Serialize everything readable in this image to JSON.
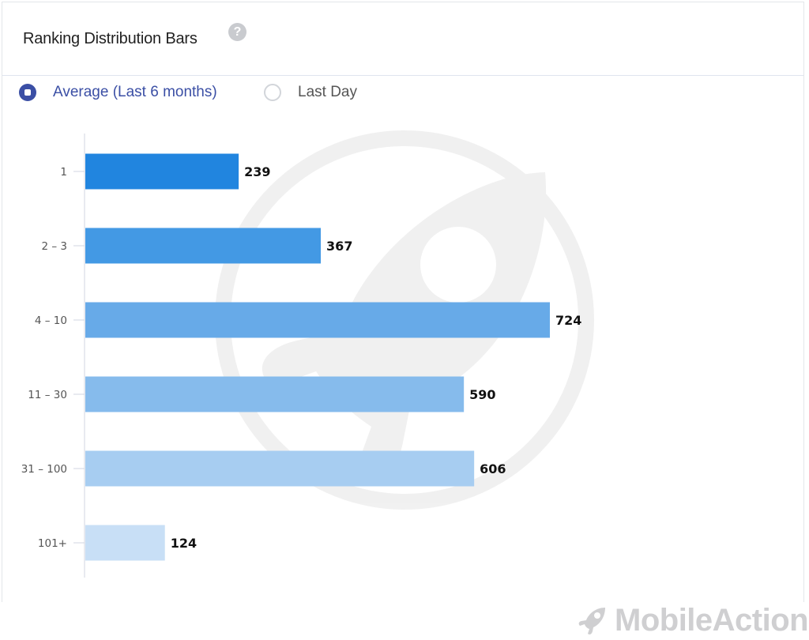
{
  "card": {
    "title": "Ranking Distribution Bars",
    "help_icon": "question-circle-icon"
  },
  "filters": {
    "options": [
      {
        "label": "Average (Last 6 months)",
        "selected": true
      },
      {
        "label": "Last Day",
        "selected": false
      }
    ]
  },
  "colors": {
    "accent": "#3b4fa5",
    "bars": [
      "#2185df",
      "#4399e4",
      "#67aae8",
      "#86bbec",
      "#a7cdf1",
      "#c8dff6"
    ]
  },
  "chart_data": {
    "type": "bar",
    "orientation": "horizontal",
    "categories": [
      "1",
      "2 – 3",
      "4 – 10",
      "11 – 30",
      "31 – 100",
      "101+"
    ],
    "values": [
      239,
      367,
      724,
      590,
      606,
      124
    ],
    "title": "",
    "xlabel": "",
    "ylabel": "",
    "xlim": [
      0,
      724
    ],
    "grid": false,
    "data_labels": true
  },
  "watermark": {
    "icon": "rocket-logo-icon",
    "text": "MobileAction"
  }
}
